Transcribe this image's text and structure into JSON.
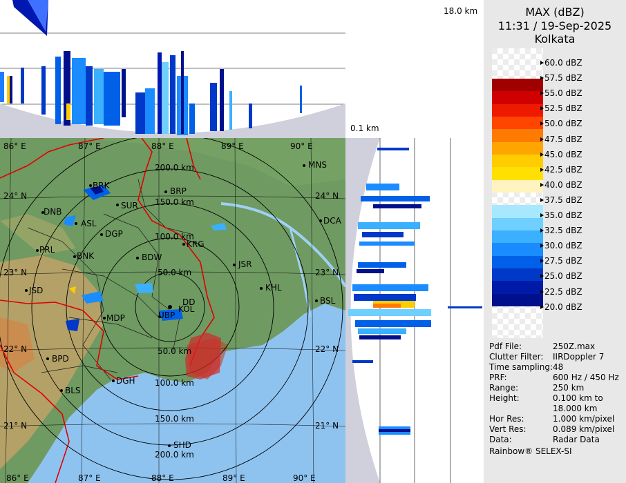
{
  "header": {
    "product": "MAX (dBZ)",
    "datetime": "11:31 / 19-Sep-2025",
    "station": "Kolkata"
  },
  "heights": {
    "top": "18.0 km",
    "bottom": "0.1 km"
  },
  "scale": {
    "labels": [
      "60.0 dBZ",
      "57.5 dBZ",
      "55.0 dBZ",
      "52.5 dBZ",
      "50.0 dBZ",
      "47.5 dBZ",
      "45.0 dBZ",
      "42.5 dBZ",
      "40.0 dBZ",
      "37.5 dBZ",
      "35.0 dBZ",
      "32.5 dBZ",
      "30.0 dBZ",
      "27.5 dBZ",
      "25.0 dBZ",
      "22.5 dBZ",
      "20.0 dBZ"
    ],
    "colors": [
      "#a00000",
      "#d00000",
      "#ee1a00",
      "#ff4500",
      "#ff7a00",
      "#ffa500",
      "#ffcc00",
      "#ffe000",
      "#fff4c0",
      "#ffffff",
      "#a8e8ff",
      "#6fcfff",
      "#3ab0ff",
      "#1a8cff",
      "#0060e8",
      "#0038c8",
      "#001aa8",
      "#00108c"
    ]
  },
  "info": {
    "rows": [
      {
        "key": "Pdf File:",
        "value": "250Z.max"
      },
      {
        "key": "Clutter Filter:",
        "value": "IIRDoppler 7"
      },
      {
        "key": "Time sampling:",
        "value": "48"
      },
      {
        "key": "PRF:",
        "value": "600 Hz / 450 Hz"
      },
      {
        "key": "Range:",
        "value": "250 km"
      },
      {
        "key": "Height:",
        "value": "0.100 km to"
      },
      {
        "key": "",
        "value": "18.000 km"
      },
      {
        "key": "Hor Res:",
        "value": "1.000 km/pixel"
      },
      {
        "key": "Vert Res:",
        "value": "0.089 km/pixel"
      },
      {
        "key": "Data:",
        "value": "Radar Data"
      }
    ],
    "credit": "Rainbow® SELEX-SI"
  },
  "map": {
    "lon_labels": [
      "86° E",
      "87° E",
      "88° E",
      "89° E",
      "90° E"
    ],
    "lat_labels": [
      "24° N",
      "23° N",
      "22° N",
      "21° N"
    ],
    "range_rings": [
      "50.0 km",
      "100.0 km",
      "150.0 km",
      "200.0 km"
    ],
    "places": [
      "MNS",
      "BRP",
      "DNB",
      "ASL",
      "SUR",
      "BRK",
      "DCA",
      "DGP",
      "KRG",
      "PRL",
      "BNK",
      "BDW",
      "JSR",
      "JSD",
      "KHL",
      "DD",
      "KOL",
      "BSL",
      "MDP",
      "UBP",
      "BPD",
      "DGH",
      "BLS",
      "SHD"
    ]
  }
}
